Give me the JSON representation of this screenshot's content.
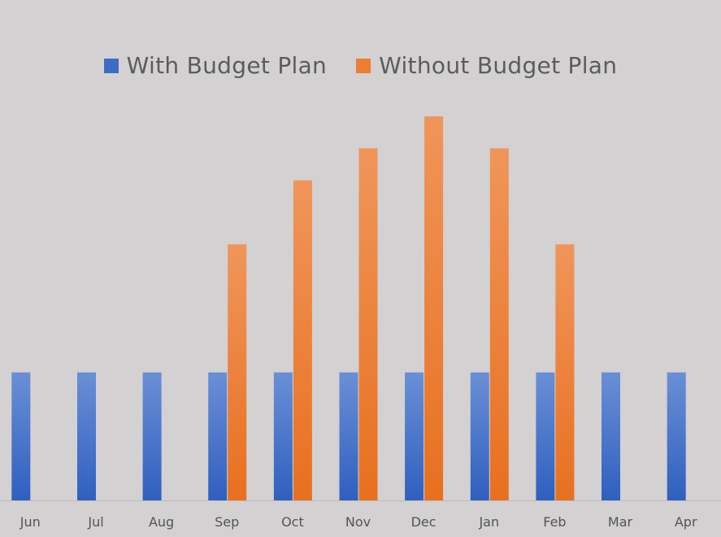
{
  "colors": {
    "background": "#d3d1d2",
    "with_plan_top": "#6a8fd6",
    "with_plan_bottom": "#2f5fbf",
    "without_plan_top": "#f0955a",
    "without_plan_bottom": "#e8701f",
    "axis_line": "#bdbbbc",
    "tick_label": "#555555",
    "legend_text": "#5c5c5c"
  },
  "legend": {
    "items": [
      {
        "label": "With Budget Plan",
        "color": "#3d6cc6"
      },
      {
        "label": "Without Budget Plan",
        "color": "#ed7d31"
      }
    ],
    "placement": "top-center"
  },
  "chart_data": {
    "type": "bar",
    "categories": [
      "Jun",
      "Jul",
      "Aug",
      "Sep",
      "Oct",
      "Nov",
      "Dec",
      "Jan",
      "Feb",
      "Mar",
      "Apr"
    ],
    "series": [
      {
        "name": "With Budget Plan",
        "values": [
          2,
          2,
          2,
          2,
          2,
          2,
          2,
          2,
          2,
          2,
          2
        ]
      },
      {
        "name": "Without Budget Plan",
        "values": [
          0,
          0,
          0,
          4,
          5,
          5.5,
          6,
          5.5,
          4,
          0,
          0
        ]
      }
    ],
    "ylim": [
      0,
      6
    ],
    "grid": false,
    "title": "",
    "xlabel": "",
    "ylabel": ""
  }
}
